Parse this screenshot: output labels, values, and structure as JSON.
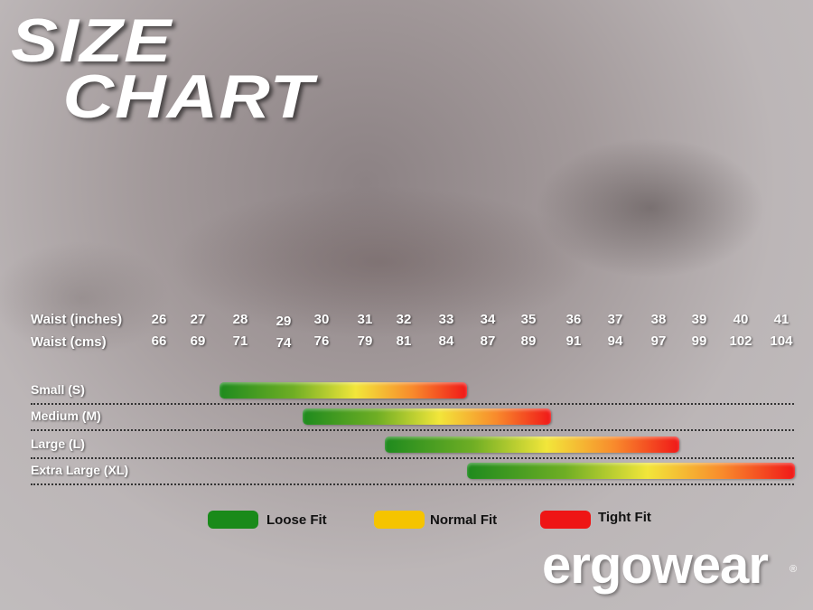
{
  "title": {
    "line1": "SIZE",
    "line2": "CHART"
  },
  "chart_data": {
    "type": "bar",
    "title": "SIZE CHART",
    "waist_inches_label": "Waist (inches)",
    "waist_cms_label": "Waist (cms)",
    "waist_inches": [
      "26",
      "27",
      "28",
      "29",
      "30",
      "31",
      "32",
      "33",
      "34",
      "35",
      "36",
      "37",
      "38",
      "39",
      "40",
      "41"
    ],
    "waist_cms": [
      "66",
      "69",
      "71",
      "74",
      "76",
      "79",
      "81",
      "84",
      "87",
      "89",
      "91",
      "94",
      "97",
      "99",
      "102",
      "104"
    ],
    "sizes": [
      {
        "name": "Small (S)",
        "from_inches": 28,
        "to_inches": 33
      },
      {
        "name": "Medium (M)",
        "from_inches": 30,
        "to_inches": 35
      },
      {
        "name": "Large (L)",
        "from_inches": 32,
        "to_inches": 38
      },
      {
        "name": "Extra Large (XL)",
        "from_inches": 34,
        "to_inches": 41
      }
    ],
    "legend": [
      {
        "label": "Loose Fit",
        "color": "#1a8a1a"
      },
      {
        "label": "Normal Fit",
        "color": "#f5c400"
      },
      {
        "label": "Tight Fit",
        "color": "#ee1515"
      }
    ]
  },
  "brand": {
    "logo": "ergowear",
    "registered": "®"
  }
}
